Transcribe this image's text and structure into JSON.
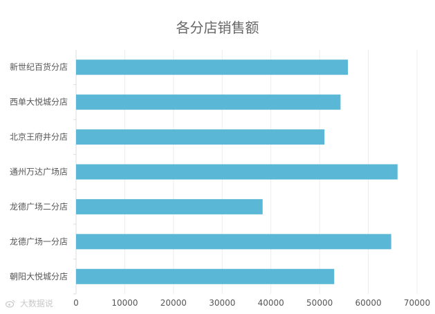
{
  "chart_data": {
    "type": "bar",
    "orientation": "horizontal",
    "title": "各分店销售额",
    "categories": [
      "朝阳大悦城分店",
      "龙德广场一分店",
      "龙德广场二分店",
      "通州万达广场店",
      "北京王府井分店",
      "西单大悦城分店",
      "新世纪百货分店"
    ],
    "values": [
      53000,
      64700,
      38300,
      66000,
      51000,
      54300,
      55800
    ],
    "xlim": [
      0,
      70000
    ],
    "xticks": [
      0,
      10000,
      20000,
      30000,
      40000,
      50000,
      60000,
      70000
    ],
    "grid": true,
    "bar_color": "#5ab8d6",
    "grid_color": "#ececec",
    "xlabel": "",
    "ylabel": ""
  },
  "watermark": {
    "text": "大数据说",
    "icon": "weibo-icon"
  }
}
